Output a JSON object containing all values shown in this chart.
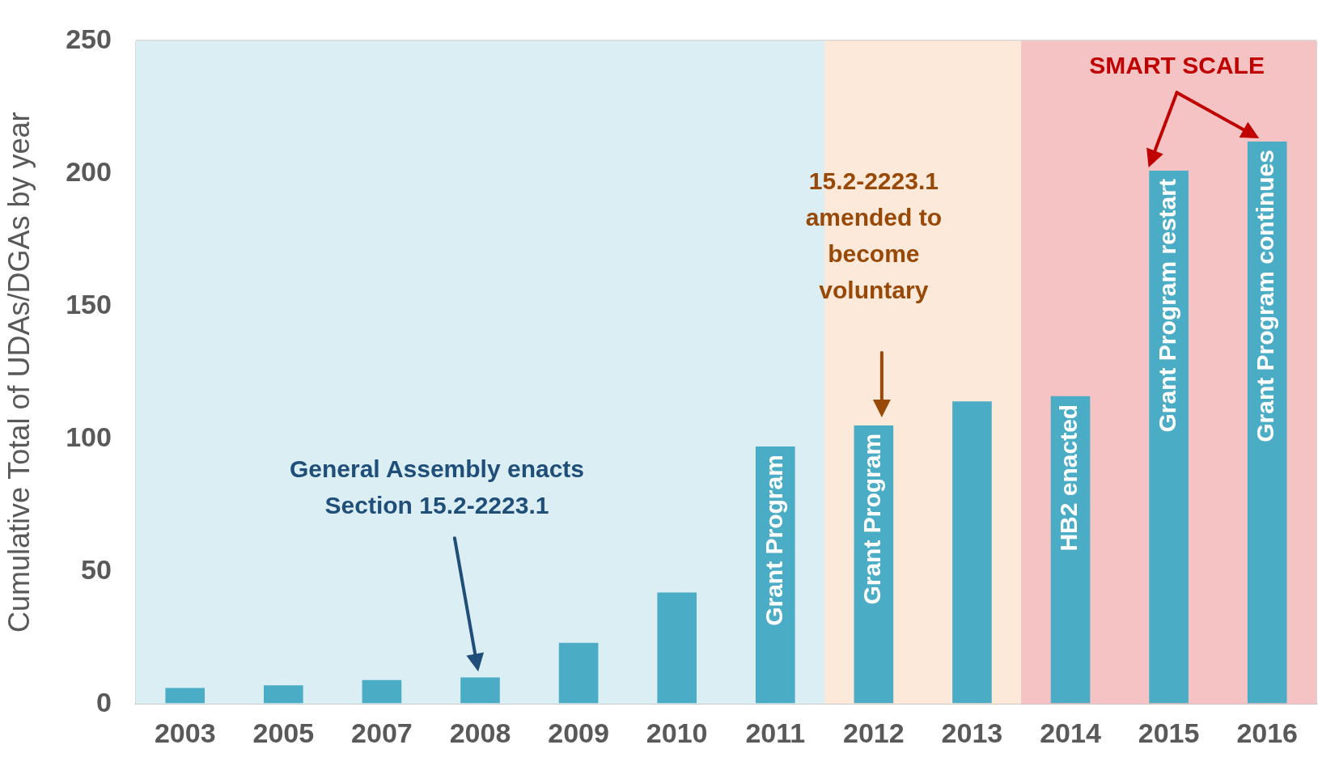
{
  "chart_data": {
    "type": "bar",
    "ylabel": "Cumulative Total of UDAs/DGAs by year",
    "categories": [
      "2003",
      "2005",
      "2007",
      "2008",
      "2009",
      "2010",
      "2011",
      "2012",
      "2013",
      "2014",
      "2015",
      "2016"
    ],
    "values": [
      6,
      7,
      9,
      10,
      23,
      42,
      97,
      105,
      114,
      116,
      201,
      212
    ],
    "color": "#4bacc6",
    "ylim": [
      0,
      250
    ],
    "yticks": [
      0,
      50,
      100,
      150,
      200,
      250
    ],
    "grid": true,
    "legend": false,
    "bands": [
      {
        "axis": "x",
        "from": "2003",
        "to": "2011",
        "color": "#daeef3"
      },
      {
        "axis": "x",
        "from": "2012",
        "to": "2013",
        "color": "#fce9da",
        "label": "15.2-2223.1 amended to become voluntary"
      },
      {
        "axis": "x",
        "from": "2014",
        "to": "2016",
        "color": "#f6c3c5",
        "label": "SMART SCALE"
      }
    ],
    "annotations": [
      "General Assembly enacts Section 15.2-2223.1",
      {
        "text": "Grant Program",
        "x": "2011",
        "y": 97
      },
      {
        "text": "Grant Program",
        "x": "2012",
        "y": 105
      },
      {
        "text": "HB2 enacted",
        "x": "2014",
        "y": 116
      },
      {
        "text": "Grant Program restart",
        "x": "2015",
        "y": 201
      },
      {
        "text": "Grant Program continues",
        "x": "2016",
        "y": 212
      }
    ]
  }
}
